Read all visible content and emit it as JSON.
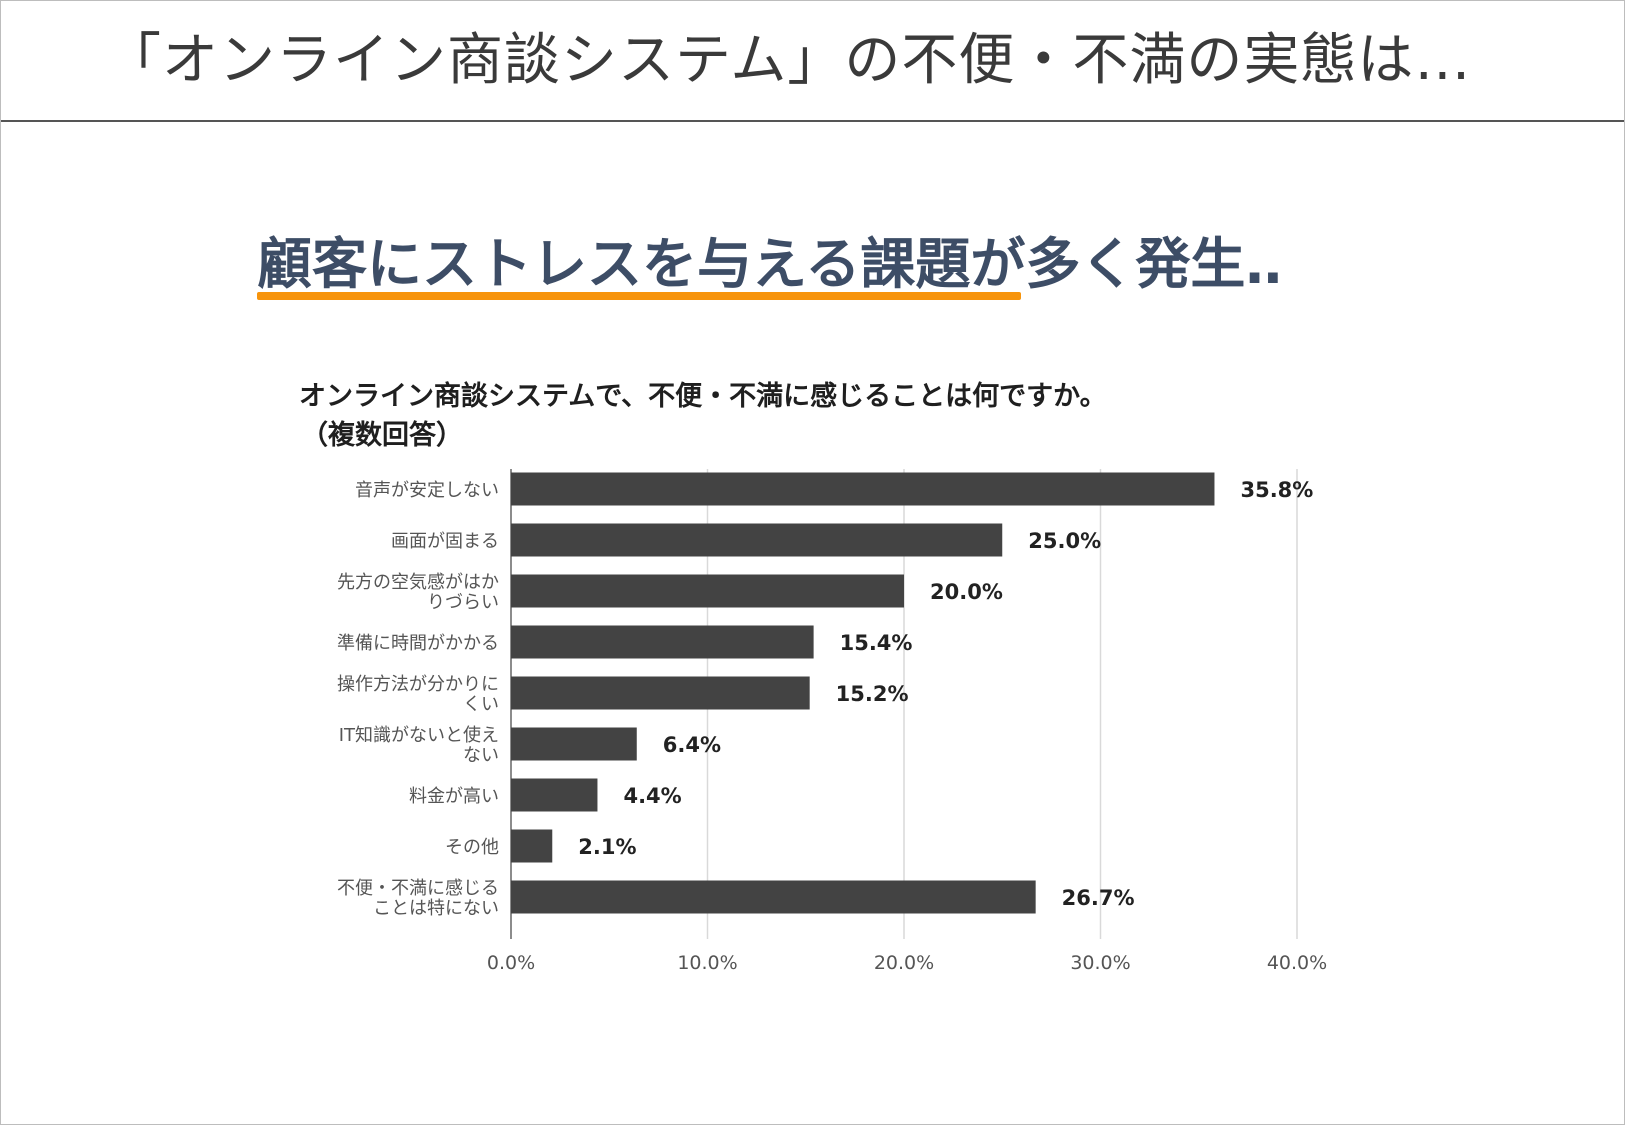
{
  "header": {
    "title": "「オンライン商談システム」の不便・不満の実態は…"
  },
  "headline": {
    "text": "顧客にストレスを与える課題が多く発生‥",
    "accent_color": "#f7940c",
    "text_color": "#3d4d66"
  },
  "chart_data": {
    "type": "bar",
    "orientation": "horizontal",
    "title": "オンライン商談システムで、不便・不満に感じることは何ですか。",
    "subtitle": "（複数回答）",
    "categories": [
      [
        "音声が安定しない"
      ],
      [
        "画面が固まる"
      ],
      [
        "先方の空気感がはか",
        "りづらい"
      ],
      [
        "準備に時間がかかる"
      ],
      [
        "操作方法が分かりに",
        "くい"
      ],
      [
        "IT知識がないと使え",
        "ない"
      ],
      [
        "料金が高い"
      ],
      [
        "その他"
      ],
      [
        "不便・不満に感じる",
        "ことは特にない"
      ]
    ],
    "values": [
      35.8,
      25.0,
      20.0,
      15.4,
      15.2,
      6.4,
      4.4,
      2.1,
      26.7
    ],
    "value_labels": [
      "35.8%",
      "25.0%",
      "20.0%",
      "15.4%",
      "15.2%",
      "6.4%",
      "4.4%",
      "2.1%",
      "26.7%"
    ],
    "xlim": [
      0,
      40
    ],
    "ticks": [
      0,
      10,
      20,
      30,
      40
    ],
    "tick_labels": [
      "0.0%",
      "10.0%",
      "20.0%",
      "30.0%",
      "40.0%"
    ],
    "grid": true,
    "bar_color": "#434343",
    "grid_color": "#d9d9d9"
  }
}
